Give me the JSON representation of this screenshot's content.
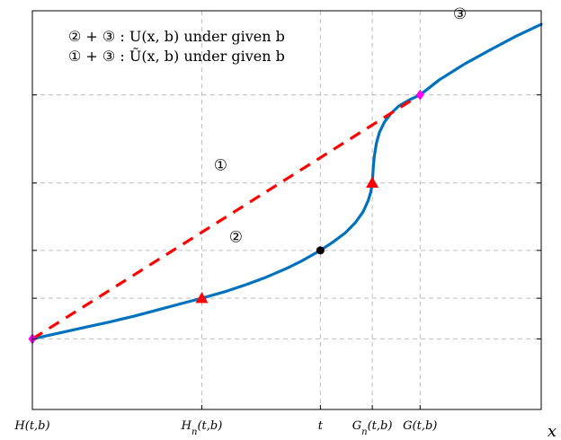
{
  "chart_data": {
    "type": "line",
    "xlabel": "x",
    "ylabel": "",
    "title": "",
    "grid": true,
    "x_ticks": [
      {
        "label": "H(t,b)",
        "value": 0
      },
      {
        "label": "H_n(t,b)",
        "value": 0.333
      },
      {
        "label": "t",
        "value": 0.566
      },
      {
        "label": "G_n(t,b)",
        "value": 0.668
      },
      {
        "label": "G(t,b)",
        "value": 0.762
      }
    ],
    "y_grid_values": [
      0.177,
      0.279,
      0.399,
      0.568,
      0.789
    ],
    "xlim": [
      0,
      1
    ],
    "ylim": [
      0,
      1
    ],
    "legend": [
      {
        "text": "② + ③ : U(x, b) under given b"
      },
      {
        "text": "① + ③ : Ũ(x, b) under given b"
      }
    ],
    "region_labels": [
      {
        "text": "①",
        "x": 0.37,
        "y": 0.6
      },
      {
        "text": "②",
        "x": 0.4,
        "y": 0.42
      },
      {
        "text": "③",
        "x": 0.84,
        "y": 0.98
      }
    ],
    "series": [
      {
        "style": "solid",
        "color": "#0072bd",
        "x": [
          0,
          0.05,
          0.1,
          0.15,
          0.2,
          0.25,
          0.3,
          0.333,
          0.38,
          0.42,
          0.46,
          0.5,
          0.53,
          0.566,
          0.59,
          0.615,
          0.635,
          0.65,
          0.66,
          0.665,
          0.668,
          0.67,
          0.672,
          0.676,
          0.682,
          0.692,
          0.705,
          0.72,
          0.74,
          0.762,
          0.8,
          0.85,
          0.9,
          0.95,
          1.0
        ],
        "y": [
          0.177,
          0.191,
          0.205,
          0.219,
          0.234,
          0.251,
          0.268,
          0.279,
          0.296,
          0.313,
          0.332,
          0.354,
          0.373,
          0.399,
          0.419,
          0.443,
          0.469,
          0.496,
          0.524,
          0.545,
          0.568,
          0.608,
          0.635,
          0.667,
          0.695,
          0.721,
          0.743,
          0.761,
          0.776,
          0.789,
          0.827,
          0.867,
          0.902,
          0.936,
          0.966
        ]
      },
      {
        "style": "dashed",
        "color": "#ff0000",
        "x": [
          0,
          0.762
        ],
        "y": [
          0.177,
          0.789
        ]
      }
    ],
    "markers": [
      {
        "shape": "diamond",
        "color": "#ff00ff",
        "x": 0,
        "y": 0.177
      },
      {
        "shape": "diamond",
        "color": "#ff00ff",
        "x": 0.762,
        "y": 0.789
      },
      {
        "shape": "triangle",
        "color": "#ff0000",
        "x": 0.333,
        "y": 0.279
      },
      {
        "shape": "triangle",
        "color": "#ff0000",
        "x": 0.668,
        "y": 0.568
      },
      {
        "shape": "circle",
        "color": "#000000",
        "x": 0.566,
        "y": 0.399
      }
    ]
  }
}
